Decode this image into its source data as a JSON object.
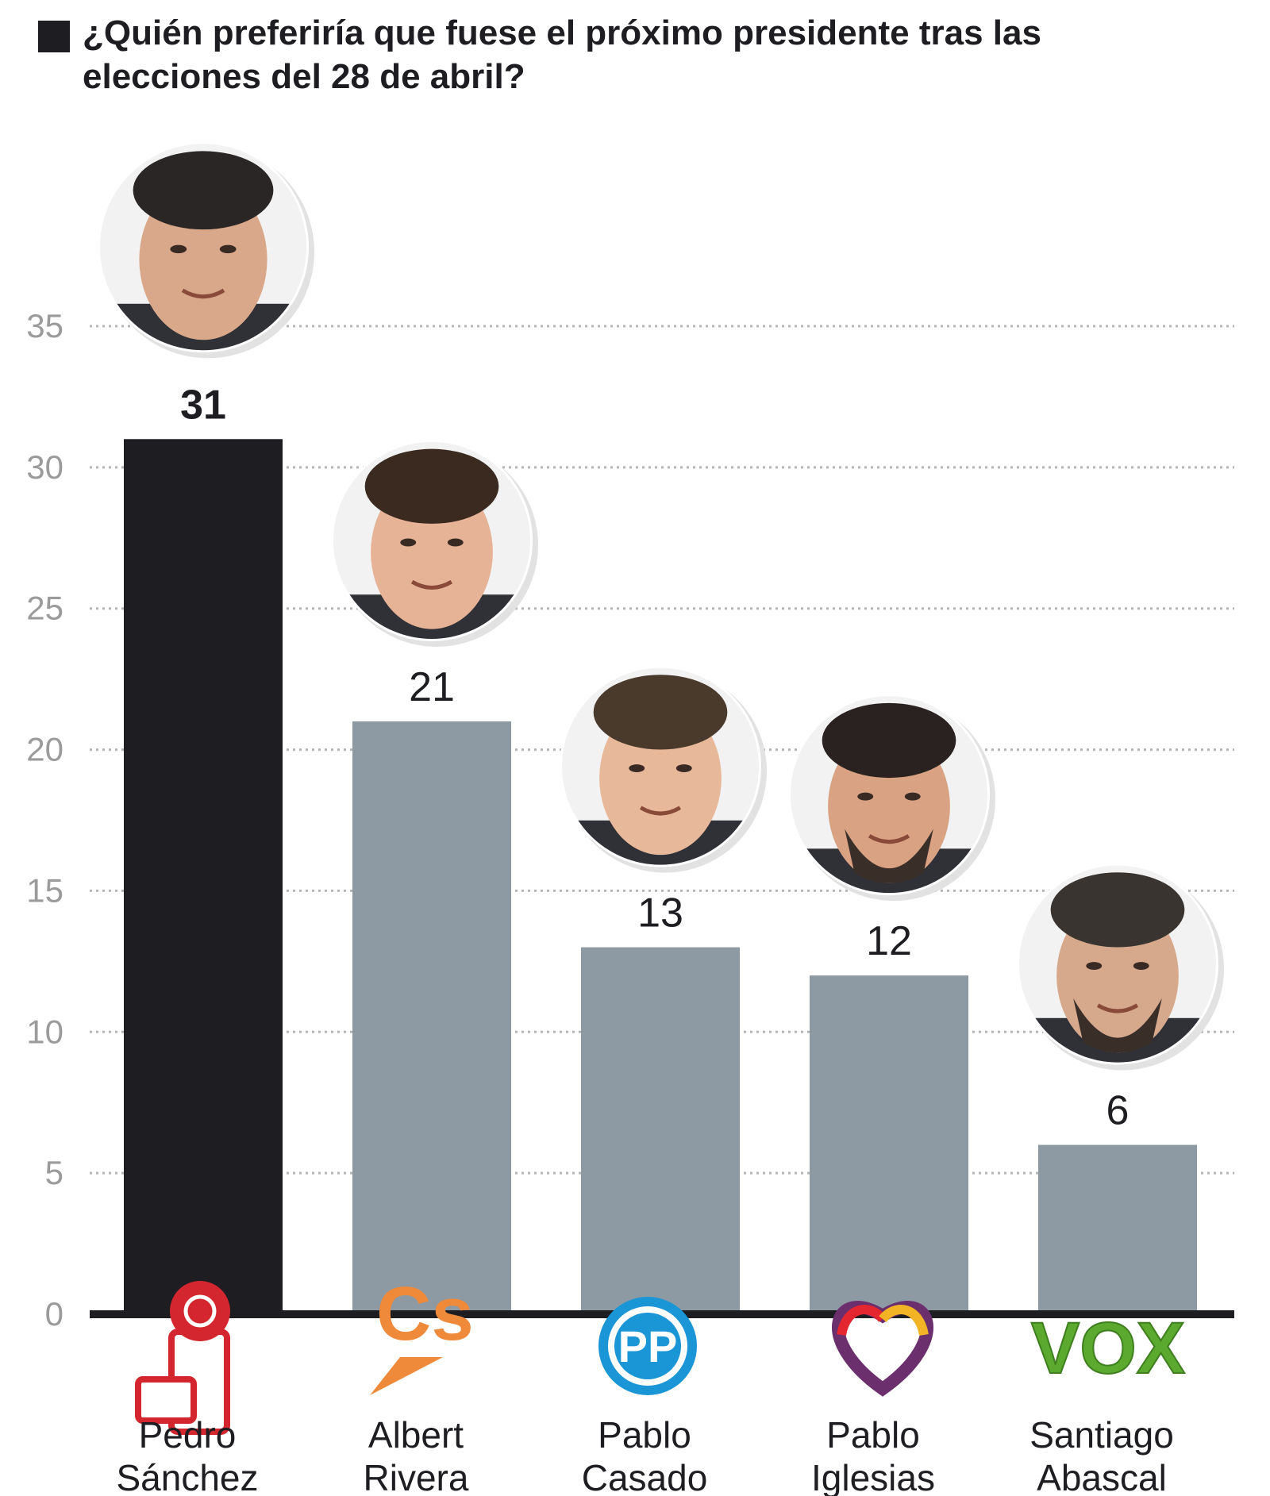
{
  "title": "¿Quién preferiría que fuese el próximo presidente tras las elecciones del 28 de abril?",
  "colors": {
    "highlight": "#1e1d22",
    "bar": "#8d9aa3",
    "grid": "#b5b5b5",
    "axis": "#1e1d22",
    "tick": "#9b9b9b",
    "text": "#1e1d22"
  },
  "chart_data": {
    "type": "bar",
    "categories": [
      [
        "Pedro",
        "Sánchez"
      ],
      [
        "Albert",
        "Rivera"
      ],
      [
        "Pablo",
        "Casado"
      ],
      [
        "Pablo",
        "Iglesias"
      ],
      [
        "Santiago",
        "Abascal"
      ]
    ],
    "values": [
      31,
      21,
      13,
      12,
      6
    ],
    "data_labels": [
      "31",
      "21",
      "13",
      "12",
      "6"
    ],
    "highlight_index": 0,
    "ylim": [
      0,
      35
    ],
    "yticks": [
      0,
      5,
      10,
      15,
      20,
      25,
      30,
      35
    ],
    "grid": true,
    "grid_style": "dotted",
    "xlabel": "",
    "ylabel": "",
    "party_logos": [
      "psoe-rose-icon",
      "ciudadanos-cs-logo",
      "pp-logo",
      "unidas-podemos-heart-logo",
      "vox-logo"
    ],
    "portraits": [
      "portrait-pedro-sanchez",
      "portrait-albert-rivera",
      "portrait-pablo-casado",
      "portrait-pablo-iglesias",
      "portrait-santiago-abascal"
    ],
    "logo_text": {
      "cs": "Cs",
      "pp": "PP",
      "vox": "VOX"
    }
  }
}
